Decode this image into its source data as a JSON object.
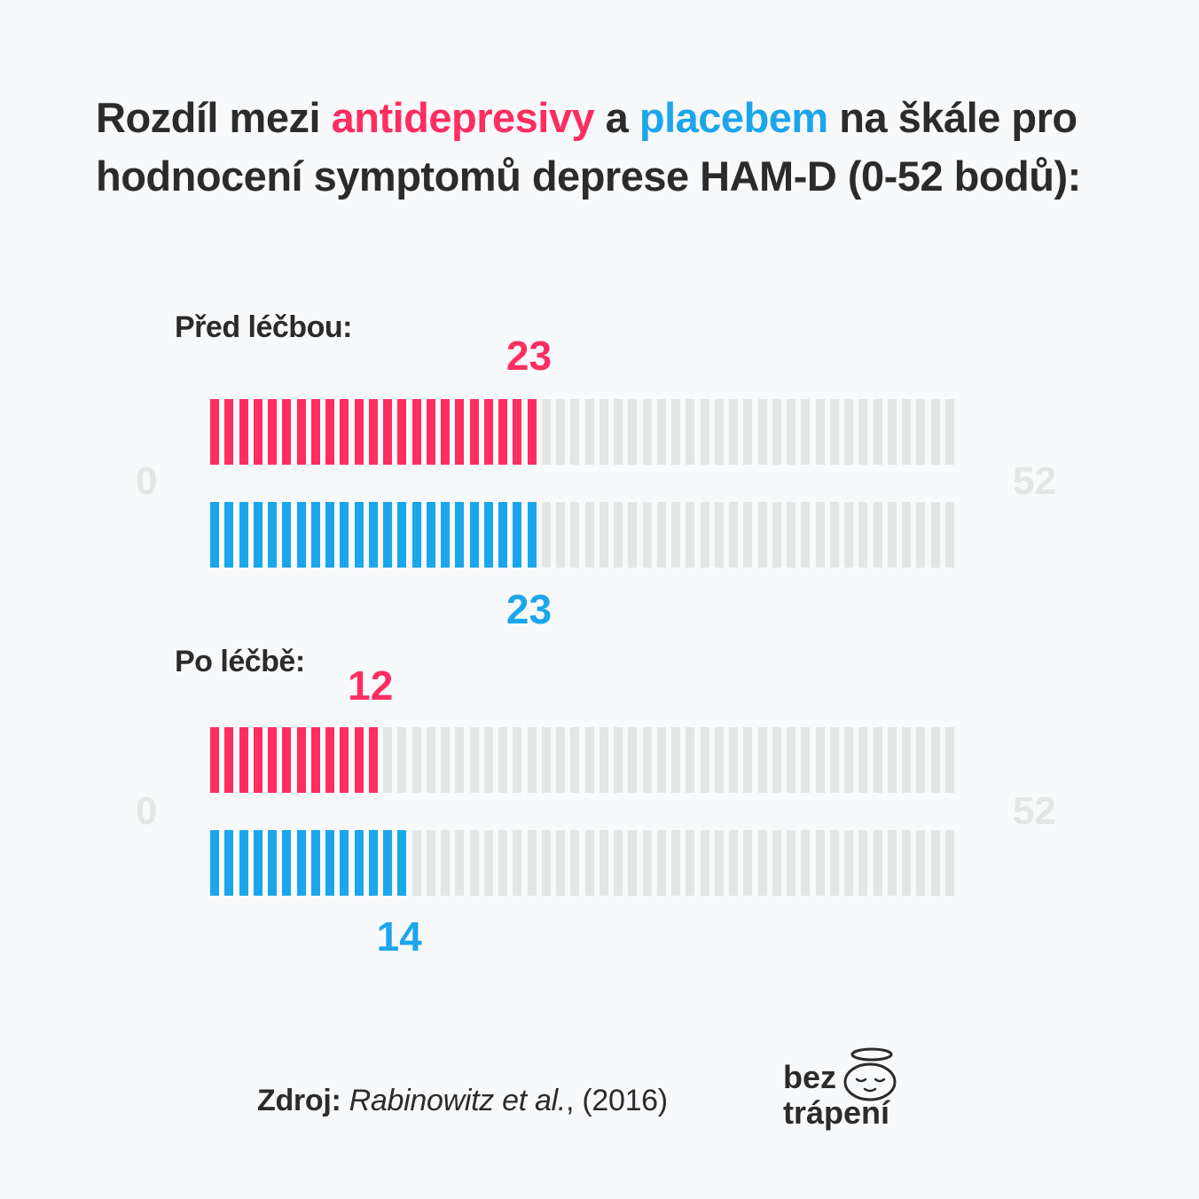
{
  "title": {
    "part1": "Rozdíl mezi ",
    "highlight_pink": "antidepresivy",
    "part2": " a ",
    "highlight_blue": "placebem",
    "part3": " na škále pro hodnocení symptomů deprese HAM-D (0-52 bodů):"
  },
  "colors": {
    "antidepressant": "#ff2d61",
    "placebo": "#1ba6ec",
    "empty": "#e2e6e4"
  },
  "chart_data": {
    "type": "bar",
    "scale_min": 0,
    "scale_max": 52,
    "axis_min_label": "0",
    "axis_max_label": "52",
    "groups": [
      {
        "label": "Před léčbou:",
        "series": [
          {
            "key": "antidepressant",
            "value": 23,
            "label": "23"
          },
          {
            "key": "placebo",
            "value": 23,
            "label": "23"
          }
        ]
      },
      {
        "label": "Po léčbě:",
        "series": [
          {
            "key": "antidepressant",
            "value": 12,
            "label": "12"
          },
          {
            "key": "placebo",
            "value": 14,
            "label": "14"
          }
        ]
      }
    ]
  },
  "source": {
    "label": "Zdroj:",
    "authors": "Rabinowitz et al.",
    "year": ", (2016)"
  },
  "logo": {
    "line1": "bez",
    "line2": "trápení",
    "icon": "halo-face-icon"
  }
}
